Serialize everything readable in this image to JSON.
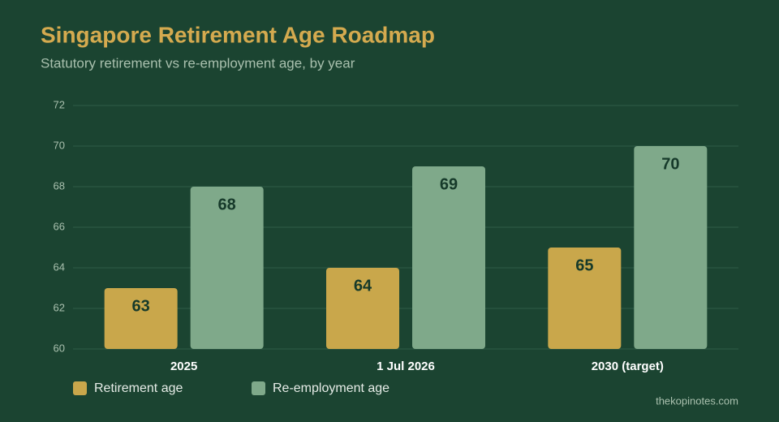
{
  "chart_data": {
    "type": "bar",
    "title": "Singapore Retirement Age Roadmap",
    "subtitle": "Statutory retirement vs re-employment age, by year",
    "categories": [
      "2025",
      "1 Jul 2026",
      "2030 (target)"
    ],
    "series": [
      {
        "name": "Retirement age",
        "color": "#c9a74b",
        "values": [
          63,
          64,
          65
        ]
      },
      {
        "name": "Re-employment age",
        "color": "#7fa98a",
        "values": [
          68,
          69,
          70
        ]
      }
    ],
    "ylim": [
      60,
      72
    ],
    "yticks": [
      60,
      62,
      64,
      66,
      68,
      70,
      72
    ],
    "grid": true,
    "legend": "bottom-left",
    "source": "thekopinotes.com"
  }
}
